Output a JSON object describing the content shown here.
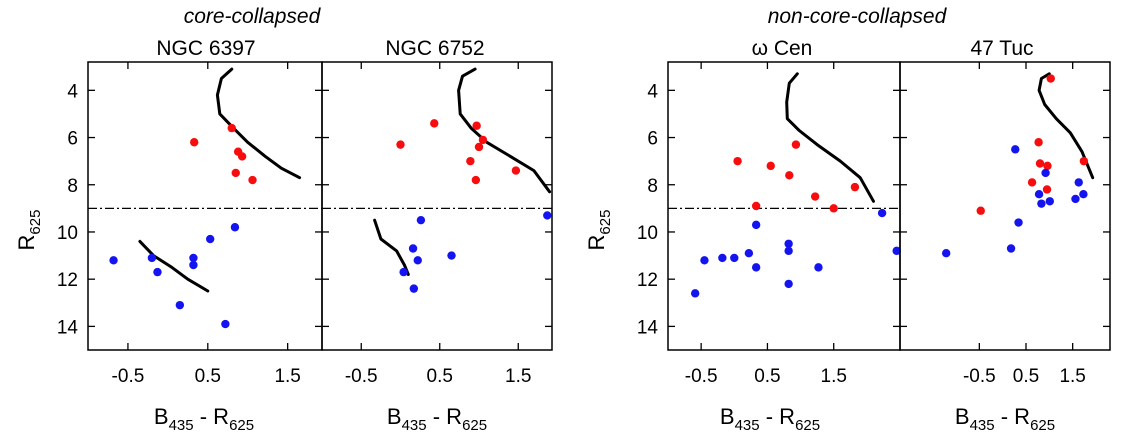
{
  "groups": [
    {
      "title": "core-collapsed"
    },
    {
      "title": "non-core-collapsed"
    }
  ],
  "colors": {
    "red": "#f70d0d",
    "blue": "#1414f0",
    "line": "#000000"
  },
  "axis_text": {
    "x_main": "B",
    "x_sub1": "435",
    "x_mid": " - R",
    "x_sub2": "625",
    "y_main": "R",
    "y_sub": "625"
  },
  "chart_data": [
    {
      "type": "scatter",
      "title": "NGC 6397",
      "xlabel": "B435 - R625",
      "ylabel": "R625",
      "xlim": [
        -1.0,
        1.93
      ],
      "ylim": [
        15.0,
        2.8
      ],
      "y_inverted": true,
      "xticks": [
        -0.5,
        0.5,
        1.5
      ],
      "xtick_labels": [
        "-0.5",
        "0.5",
        "1.5"
      ],
      "yticks": [
        4,
        6,
        8,
        10,
        12,
        14
      ],
      "ytick_labels": [
        "4",
        "6",
        "8",
        "10",
        "12",
        "14"
      ],
      "cut_level": 9.0,
      "red": [
        [
          0.33,
          6.2
        ],
        [
          0.8,
          5.6
        ],
        [
          0.88,
          6.6
        ],
        [
          0.93,
          6.8
        ],
        [
          0.85,
          7.5
        ],
        [
          1.06,
          7.8
        ]
      ],
      "blue": [
        [
          -0.68,
          11.2
        ],
        [
          -0.2,
          11.1
        ],
        [
          -0.13,
          11.7
        ],
        [
          0.32,
          11.1
        ],
        [
          0.32,
          11.4
        ],
        [
          0.53,
          10.3
        ],
        [
          0.84,
          9.8
        ],
        [
          0.15,
          13.1
        ],
        [
          0.72,
          13.9
        ]
      ],
      "isochrone_upper": [
        [
          0.8,
          3.1
        ],
        [
          0.67,
          3.5
        ],
        [
          0.62,
          4.2
        ],
        [
          0.65,
          5.0
        ],
        [
          0.82,
          5.6
        ],
        [
          1.0,
          6.2
        ],
        [
          1.22,
          6.8
        ],
        [
          1.42,
          7.3
        ],
        [
          1.65,
          7.7
        ]
      ],
      "isochrone_lower": [
        [
          -0.35,
          10.4
        ],
        [
          -0.18,
          11.0
        ],
        [
          0.05,
          11.5
        ],
        [
          0.25,
          12.0
        ],
        [
          0.5,
          12.5
        ]
      ]
    },
    {
      "type": "scatter",
      "title": "NGC 6752",
      "xlabel": "B435 - R625",
      "ylabel": "",
      "xlim": [
        -1.0,
        1.93
      ],
      "ylim": [
        15.0,
        2.8
      ],
      "y_inverted": true,
      "xticks": [
        -0.5,
        0.5,
        1.5
      ],
      "xtick_labels": [
        "-0.5",
        "0.5",
        "1.5"
      ],
      "yticks": [
        4,
        6,
        8,
        10,
        12,
        14
      ],
      "ytick_labels": [
        "",
        "",
        "",
        "",
        "",
        ""
      ],
      "cut_level": 9.0,
      "red": [
        [
          0.0,
          6.3
        ],
        [
          0.43,
          5.4
        ],
        [
          0.97,
          5.5
        ],
        [
          1.05,
          6.1
        ],
        [
          1.0,
          6.4
        ],
        [
          0.89,
          7.0
        ],
        [
          0.96,
          7.8
        ],
        [
          1.47,
          7.4
        ]
      ],
      "blue": [
        [
          0.26,
          9.5
        ],
        [
          1.87,
          9.3
        ],
        [
          0.16,
          10.7
        ],
        [
          0.22,
          11.2
        ],
        [
          0.65,
          11.0
        ],
        [
          0.04,
          11.7
        ],
        [
          0.17,
          12.4
        ]
      ],
      "isochrone_upper": [
        [
          0.95,
          3.1
        ],
        [
          0.79,
          3.4
        ],
        [
          0.74,
          4.0
        ],
        [
          0.76,
          5.0
        ],
        [
          0.9,
          5.6
        ],
        [
          1.1,
          6.2
        ],
        [
          1.4,
          6.8
        ],
        [
          1.7,
          7.4
        ],
        [
          1.9,
          8.3
        ]
      ],
      "isochrone_lower": [
        [
          -0.33,
          9.5
        ],
        [
          -0.25,
          10.3
        ],
        [
          -0.05,
          10.8
        ],
        [
          0.05,
          11.4
        ],
        [
          0.1,
          11.8
        ]
      ]
    },
    {
      "type": "scatter",
      "title": "ω Cen",
      "xlabel": "B435 - R625",
      "ylabel": "R625",
      "xlim": [
        -1.0,
        2.5
      ],
      "ylim": [
        15.0,
        2.8
      ],
      "y_inverted": true,
      "xticks": [
        -0.5,
        0.5,
        1.5
      ],
      "xtick_labels": [
        "-0.5",
        "0.5",
        "1.5"
      ],
      "yticks": [
        4,
        6,
        8,
        10,
        12,
        14
      ],
      "ytick_labels": [
        "4",
        "6",
        "8",
        "10",
        "12",
        "14"
      ],
      "cut_level": 9.0,
      "red": [
        [
          0.05,
          7.0
        ],
        [
          0.93,
          6.3
        ],
        [
          0.55,
          7.2
        ],
        [
          0.83,
          7.6
        ],
        [
          1.22,
          8.5
        ],
        [
          1.82,
          8.1
        ],
        [
          0.33,
          8.9
        ],
        [
          1.5,
          9.0
        ]
      ],
      "blue": [
        [
          0.33,
          9.7
        ],
        [
          0.82,
          10.5
        ],
        [
          0.82,
          10.8
        ],
        [
          2.23,
          9.2
        ],
        [
          2.45,
          10.8
        ],
        [
          -0.45,
          11.2
        ],
        [
          -0.18,
          11.1
        ],
        [
          0.0,
          11.1
        ],
        [
          0.22,
          10.9
        ],
        [
          0.33,
          11.5
        ],
        [
          1.27,
          11.5
        ],
        [
          -0.59,
          12.6
        ],
        [
          0.82,
          12.2
        ]
      ],
      "isochrone_upper": [
        [
          0.95,
          3.3
        ],
        [
          0.83,
          3.7
        ],
        [
          0.79,
          4.5
        ],
        [
          0.8,
          5.2
        ],
        [
          0.98,
          5.7
        ],
        [
          1.25,
          6.3
        ],
        [
          1.6,
          7.0
        ],
        [
          1.9,
          7.7
        ],
        [
          2.1,
          8.7
        ]
      ],
      "isochrone_lower": []
    },
    {
      "type": "scatter",
      "title": "47 Tuc",
      "xlabel": "B435 - R625",
      "ylabel": "",
      "xlim": [
        -2.2,
        2.3
      ],
      "ylim": [
        15.0,
        2.8
      ],
      "y_inverted": true,
      "xticks": [
        -0.5,
        0.5,
        1.5
      ],
      "xtick_labels": [
        "-0.5",
        "0.5",
        "1.5"
      ],
      "yticks": [
        4,
        6,
        8,
        10,
        12,
        14
      ],
      "ytick_labels": [
        "",
        "",
        "",
        "",
        "",
        ""
      ],
      "cut_level": null,
      "red": [
        [
          1.03,
          3.5
        ],
        [
          0.77,
          6.2
        ],
        [
          0.8,
          7.1
        ],
        [
          0.96,
          7.2
        ],
        [
          1.74,
          7.0
        ],
        [
          0.63,
          7.9
        ],
        [
          0.95,
          8.2
        ],
        [
          -0.47,
          9.1
        ]
      ],
      "blue": [
        [
          0.27,
          6.5
        ],
        [
          0.92,
          7.5
        ],
        [
          0.78,
          8.4
        ],
        [
          0.83,
          8.8
        ],
        [
          1.01,
          8.7
        ],
        [
          1.63,
          7.9
        ],
        [
          1.73,
          8.4
        ],
        [
          1.56,
          8.6
        ],
        [
          0.34,
          9.6
        ],
        [
          0.18,
          10.7
        ],
        [
          -1.21,
          10.9
        ]
      ],
      "isochrone_upper": [
        [
          1.0,
          3.3
        ],
        [
          0.83,
          3.5
        ],
        [
          0.78,
          4.0
        ],
        [
          0.9,
          4.6
        ],
        [
          1.15,
          5.2
        ],
        [
          1.45,
          5.8
        ],
        [
          1.7,
          6.6
        ],
        [
          1.93,
          7.7
        ]
      ],
      "isochrone_lower": []
    }
  ]
}
